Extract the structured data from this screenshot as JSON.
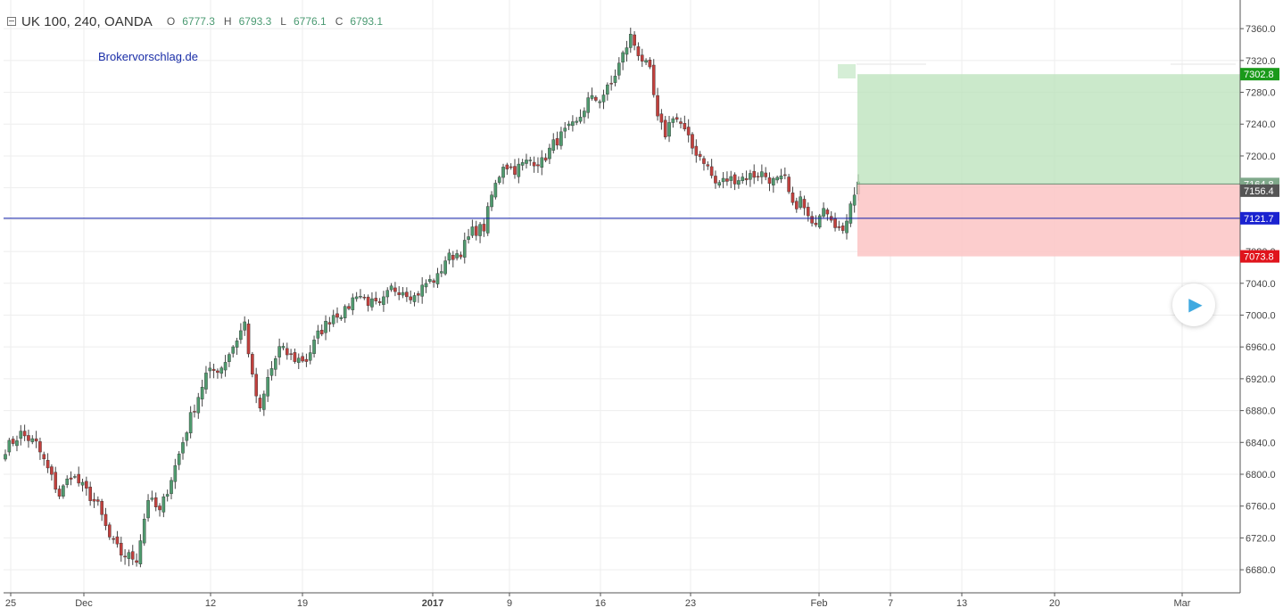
{
  "header": {
    "symbol": "UK 100, 240, OANDA",
    "ohlc": [
      {
        "key": "O",
        "value": "6777.3"
      },
      {
        "key": "H",
        "value": "6793.3"
      },
      {
        "key": "L",
        "value": "6776.1"
      },
      {
        "key": "C",
        "value": "6793.1"
      }
    ],
    "watermark": "Brokervorschlag.de"
  },
  "colors": {
    "up": "#4f9a6e",
    "down": "#c1403d",
    "wick": "#444444",
    "hline": "#0b1aa8",
    "green_zone": "#b9e2ba",
    "red_zone": "#fcc4c4"
  },
  "chart_data": {
    "type": "candlestick",
    "y_ticks": [
      6680,
      6720,
      6760,
      6800,
      6840,
      6880,
      6920,
      6960,
      7000,
      7040,
      7080,
      7120,
      7160,
      7200,
      7240,
      7280,
      7320,
      7360
    ],
    "ylim": [
      6651,
      7396
    ],
    "x_ticks": [
      "25",
      "Dec",
      "12",
      "19",
      "2017",
      "9",
      "16",
      "23",
      "Feb",
      "7",
      "13",
      "20",
      "Mar"
    ],
    "candle_anchors": [
      [
        0,
        6832
      ],
      [
        4,
        6851
      ],
      [
        8,
        6838
      ],
      [
        11,
        6806
      ],
      [
        14,
        6774
      ],
      [
        17,
        6800
      ],
      [
        20,
        6784
      ],
      [
        24,
        6760
      ],
      [
        27,
        6720
      ],
      [
        30,
        6700
      ],
      [
        34,
        6694
      ],
      [
        37,
        6770
      ],
      [
        40,
        6752
      ],
      [
        44,
        6810
      ],
      [
        48,
        6872
      ],
      [
        52,
        6925
      ],
      [
        56,
        6935
      ],
      [
        60,
        6970
      ],
      [
        62,
        6990
      ],
      [
        64,
        6920
      ],
      [
        66,
        6878
      ],
      [
        68,
        6920
      ],
      [
        71,
        6958
      ],
      [
        75,
        6945
      ],
      [
        78,
        6944
      ],
      [
        81,
        6975
      ],
      [
        85,
        7001
      ],
      [
        88,
        7004
      ],
      [
        91,
        7028
      ],
      [
        94,
        7017
      ],
      [
        97,
        7010
      ],
      [
        100,
        7033
      ],
      [
        103,
        7032
      ],
      [
        106,
        7023
      ],
      [
        109,
        7040
      ],
      [
        112,
        7047
      ],
      [
        114,
        7070
      ],
      [
        118,
        7080
      ],
      [
        121,
        7105
      ],
      [
        124,
        7110
      ],
      [
        126,
        7150
      ],
      [
        129,
        7190
      ],
      [
        132,
        7183
      ],
      [
        136,
        7195
      ],
      [
        139,
        7192
      ],
      [
        142,
        7215
      ],
      [
        145,
        7230
      ],
      [
        148,
        7240
      ],
      [
        151,
        7270
      ],
      [
        154,
        7272
      ],
      [
        157,
        7290
      ],
      [
        159,
        7315
      ],
      [
        162,
        7350
      ],
      [
        164,
        7330
      ],
      [
        167,
        7305
      ],
      [
        169,
        7245
      ],
      [
        171,
        7228
      ],
      [
        173,
        7252
      ],
      [
        175,
        7240
      ],
      [
        178,
        7210
      ],
      [
        181,
        7195
      ],
      [
        184,
        7165
      ],
      [
        187,
        7170
      ],
      [
        190,
        7172
      ],
      [
        193,
        7175
      ],
      [
        196,
        7178
      ],
      [
        199,
        7168
      ],
      [
        202,
        7170
      ],
      [
        204,
        7135
      ],
      [
        206,
        7145
      ],
      [
        209,
        7110
      ],
      [
        212,
        7140
      ],
      [
        214,
        7125
      ],
      [
        217,
        7100
      ],
      [
        219,
        7145
      ],
      [
        221,
        7165
      ]
    ],
    "candle_count": 222,
    "trade_box": {
      "entry": 7164.8,
      "target": 7302.8,
      "stop": 7073.8
    },
    "horizontal_line": 7121.7,
    "price_tags": [
      {
        "value": 7302.8,
        "label": "7302.8",
        "color": "#1a9a1a"
      },
      {
        "value": 7164.8,
        "label": "7164.8",
        "color": "#7fa88a"
      },
      {
        "value": 7156.4,
        "label": "7156.4",
        "color": "#555555"
      },
      {
        "value": 7121.7,
        "label": "7121.7",
        "color": "#1a22d0"
      },
      {
        "value": 7073.8,
        "label": "7073.8",
        "color": "#e0141c"
      }
    ]
  }
}
